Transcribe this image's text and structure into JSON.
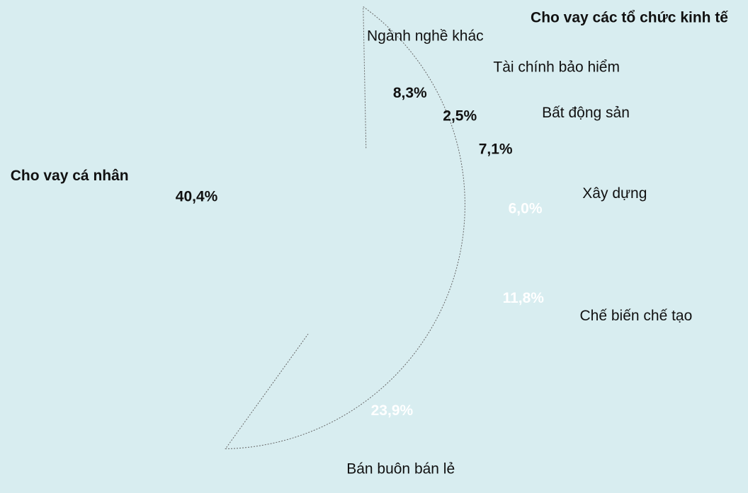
{
  "chart_data": {
    "type": "donut",
    "title": "Cho vay các tổ chức kinh tế",
    "categories": [
      "Ngành nghề khác",
      "Tài chính bảo hiểm",
      "Bất động sản",
      "Xây dựng",
      "Chế biến chế tạo",
      "Bán buôn bán lẻ",
      "Cho vay cá nhân"
    ],
    "values": [
      8.3,
      2.5,
      7.1,
      6.0,
      11.8,
      23.9,
      40.4
    ],
    "value_labels": [
      "8,3%",
      "2,5%",
      "7,1%",
      "6,0%",
      "11,8%",
      "23,9%",
      "40,4%"
    ],
    "colors": [
      "#e6e6e6",
      "#b3ffff",
      "#7afcfc",
      "#00aaaa",
      "#008080",
      "#005a5a",
      "#e07830"
    ]
  }
}
